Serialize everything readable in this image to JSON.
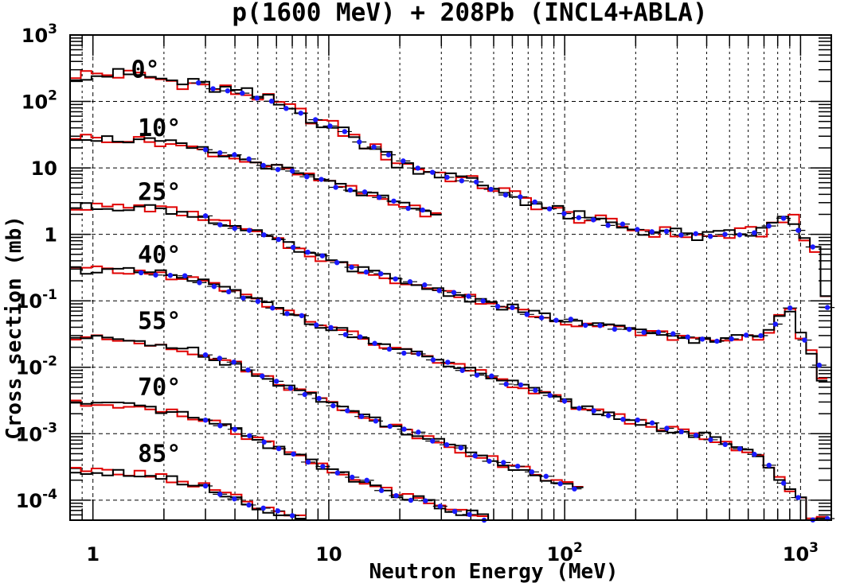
{
  "chart_data": {
    "type": "line",
    "title": "p(1600 MeV) + 208Pb (INCL4+ABLA)",
    "xlabel": "Neutron Energy (MeV)",
    "ylabel": "Cross section (mb)",
    "x_scale": "log",
    "y_scale": "log",
    "xlim": [
      0.8,
      1350
    ],
    "ylim": [
      5e-05,
      1000
    ],
    "grid": true,
    "x_ticks": [
      {
        "value": 1,
        "base": "1",
        "exp": ""
      },
      {
        "value": 10,
        "base": "10",
        "exp": ""
      },
      {
        "value": 100,
        "base": "10",
        "exp": "2"
      },
      {
        "value": 1000,
        "base": "10",
        "exp": "3"
      }
    ],
    "y_ticks": [
      {
        "value": 1000,
        "base": "10",
        "exp": "3"
      },
      {
        "value": 100,
        "base": "10",
        "exp": "2"
      },
      {
        "value": 10,
        "base": "10",
        "exp": ""
      },
      {
        "value": 1,
        "base": "1",
        "exp": ""
      },
      {
        "value": 0.1,
        "base": "10",
        "exp": "-1"
      },
      {
        "value": 0.01,
        "base": "10",
        "exp": "-2"
      },
      {
        "value": 0.001,
        "base": "10",
        "exp": "-3"
      },
      {
        "value": 0.0001,
        "base": "10",
        "exp": "-4"
      }
    ],
    "series_styles": [
      {
        "name": "INCL4+ABLA (black)",
        "color": "#000000"
      },
      {
        "name": "calculation (red)",
        "color": "#e00000"
      },
      {
        "name": "experiment (blue)",
        "color": "#1a1aff"
      }
    ],
    "angles": [
      {
        "label": "0°",
        "label_x": 1.45,
        "label_y": 230,
        "x_min": 0.8,
        "x_max": 1350,
        "y_exp": 0.2,
        "blue_from": 2.8,
        "blue_to": 1300,
        "points": [
          [
            0.8,
            260
          ],
          [
            1.5,
            250
          ],
          [
            2,
            210
          ],
          [
            3,
            170
          ],
          [
            5,
            120
          ],
          [
            10,
            45
          ],
          [
            20,
            12
          ],
          [
            50,
            5
          ],
          [
            100,
            2
          ],
          [
            200,
            1.2
          ],
          [
            400,
            0.9
          ],
          [
            700,
            1.1
          ],
          [
            900,
            2.2
          ],
          [
            1000,
            0.9
          ],
          [
            1200,
            0.5
          ],
          [
            1300,
            0.08
          ]
        ]
      },
      {
        "label": "10°",
        "label_x": 1.55,
        "label_y": 30,
        "x_min": 0.8,
        "x_max": 30,
        "y_exp": 0.12,
        "blue_from": 3,
        "blue_to": 25,
        "points": [
          [
            0.8,
            30
          ],
          [
            1.5,
            26
          ],
          [
            2,
            24
          ],
          [
            3,
            18
          ],
          [
            5,
            12
          ],
          [
            10,
            6
          ],
          [
            20,
            2.8
          ],
          [
            30,
            1.8
          ]
        ]
      },
      {
        "label": "25°",
        "label_x": 1.55,
        "label_y": 3.3,
        "x_min": 0.8,
        "x_max": 1300,
        "y_exp": 0.12,
        "blue_from": 3,
        "blue_to": 1200,
        "points": [
          [
            0.8,
            2.6
          ],
          [
            1.5,
            2.6
          ],
          [
            2,
            2.4
          ],
          [
            3,
            1.8
          ],
          [
            5,
            1
          ],
          [
            10,
            0.4
          ],
          [
            20,
            0.2
          ],
          [
            50,
            0.09
          ],
          [
            100,
            0.05
          ],
          [
            200,
            0.035
          ],
          [
            400,
            0.025
          ],
          [
            700,
            0.03
          ],
          [
            900,
            0.08
          ],
          [
            1000,
            0.03
          ],
          [
            1200,
            0.01
          ],
          [
            1300,
            0.003
          ]
        ]
      },
      {
        "label": "40°",
        "label_x": 1.55,
        "label_y": 0.37,
        "x_min": 0.8,
        "x_max": 1300,
        "y_exp": 0.12,
        "blue_from": 1.6,
        "blue_to": 1300,
        "points": [
          [
            0.8,
            0.3
          ],
          [
            1.5,
            0.27
          ],
          [
            2,
            0.25
          ],
          [
            3,
            0.19
          ],
          [
            5,
            0.1
          ],
          [
            10,
            0.04
          ],
          [
            20,
            0.018
          ],
          [
            50,
            0.007
          ],
          [
            100,
            0.003
          ],
          [
            200,
            0.0015
          ],
          [
            400,
            0.0009
          ],
          [
            700,
            0.0004
          ],
          [
            900,
            0.00015
          ],
          [
            1000,
            0.0001
          ],
          [
            1100,
            5e-05
          ]
        ]
      },
      {
        "label": "55°",
        "label_x": 1.55,
        "label_y": 0.038,
        "x_min": 0.8,
        "x_max": 120,
        "y_exp": 0.12,
        "blue_from": 3,
        "blue_to": 110,
        "points": [
          [
            0.8,
            0.028
          ],
          [
            1.5,
            0.025
          ],
          [
            2,
            0.022
          ],
          [
            3,
            0.016
          ],
          [
            5,
            0.008
          ],
          [
            10,
            0.003
          ],
          [
            20,
            0.0012
          ],
          [
            50,
            0.0004
          ],
          [
            100,
            0.00018
          ],
          [
            120,
            0.00013
          ]
        ]
      },
      {
        "label": "70°",
        "label_x": 1.55,
        "label_y": 0.0038,
        "x_min": 0.8,
        "x_max": 80,
        "y_exp": 0.12,
        "blue_from": 3,
        "blue_to": 70,
        "points": [
          [
            0.8,
            0.0028
          ],
          [
            1.5,
            0.0025
          ],
          [
            2,
            0.0022
          ],
          [
            3,
            0.0016
          ],
          [
            5,
            0.0008
          ],
          [
            10,
            0.0003
          ],
          [
            20,
            0.00012
          ],
          [
            50,
            5e-05
          ],
          [
            80,
            3e-05
          ]
        ]
      },
      {
        "label": "85°",
        "label_x": 1.55,
        "label_y": 0.00038,
        "x_min": 0.8,
        "x_max": 8,
        "y_exp": 0.12,
        "blue_from": 3,
        "blue_to": 7,
        "points": [
          [
            0.8,
            0.00028
          ],
          [
            1.5,
            0.00026
          ],
          [
            2,
            0.00022
          ],
          [
            3,
            0.00016
          ],
          [
            5,
            8e-05
          ],
          [
            8,
            5e-05
          ]
        ]
      }
    ]
  }
}
